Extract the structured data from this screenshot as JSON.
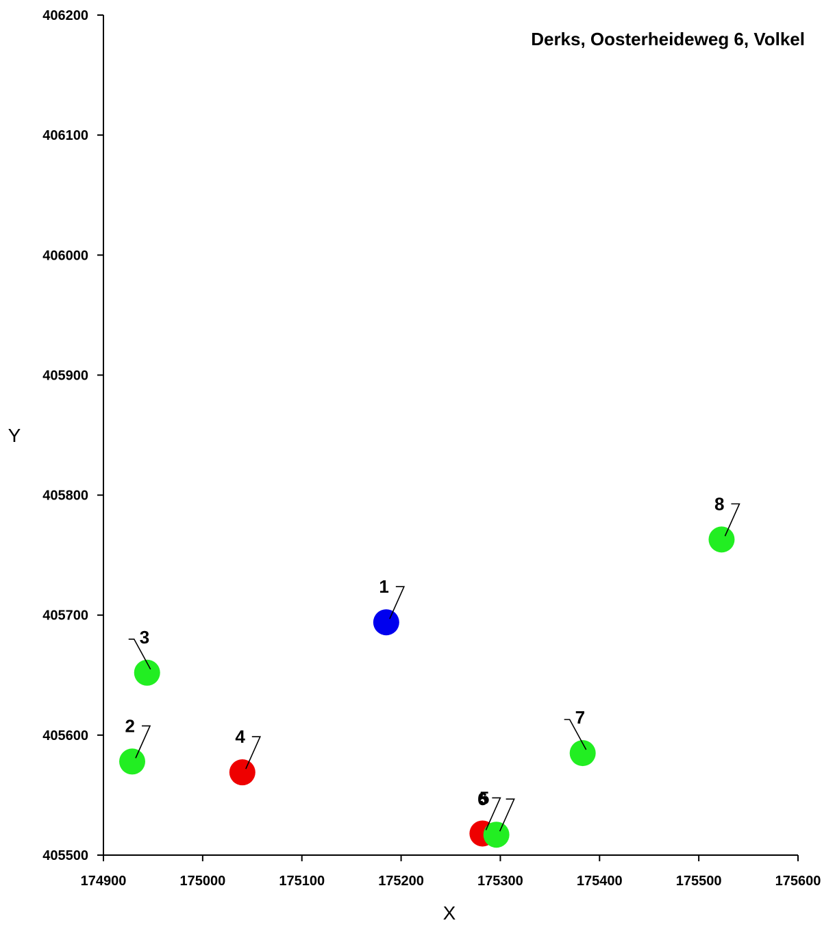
{
  "chart_data": {
    "type": "scatter",
    "title": "Derks, Oosterheideweg 6, Volkel",
    "xlabel": "X",
    "ylabel": "Y",
    "xlim": [
      174900,
      175600
    ],
    "ylim": [
      405500,
      406200
    ],
    "xticks": [
      174900,
      175000,
      175100,
      175200,
      175300,
      175400,
      175500,
      175600
    ],
    "yticks": [
      405500,
      405600,
      405700,
      405800,
      405900,
      406000,
      406100,
      406200
    ],
    "grid": false,
    "points": [
      {
        "label": "1",
        "x": 175185,
        "y": 405694,
        "color": "#0000ee",
        "label_side": "left"
      },
      {
        "label": "2",
        "x": 174929,
        "y": 405578,
        "color": "#22ee22",
        "label_side": "left"
      },
      {
        "label": "3",
        "x": 174944,
        "y": 405652,
        "color": "#22ee22",
        "label_side": "right"
      },
      {
        "label": "4",
        "x": 175040,
        "y": 405569,
        "color": "#ee0000",
        "label_side": "left"
      },
      {
        "label": "5",
        "x": 175282,
        "y": 405518,
        "color": "#ee0000",
        "label_side": "left"
      },
      {
        "label": "6",
        "x": 175296,
        "y": 405517,
        "color": "#22ee22",
        "label_side": "left"
      },
      {
        "label": "7",
        "x": 175383,
        "y": 405585,
        "color": "#22ee22",
        "label_side": "right"
      },
      {
        "label": "8",
        "x": 175523,
        "y": 405763,
        "color": "#22ee22",
        "label_side": "left"
      }
    ]
  }
}
